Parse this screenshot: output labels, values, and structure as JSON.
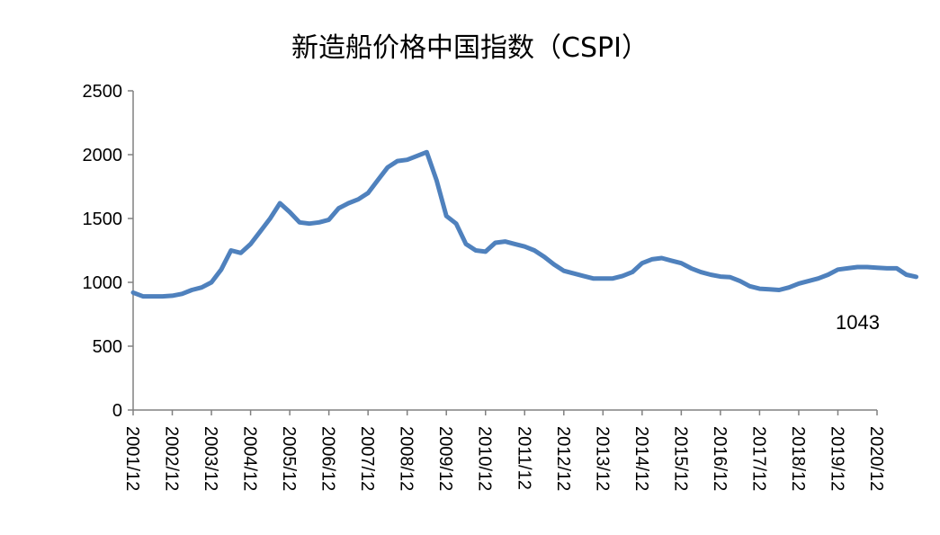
{
  "chart_data": {
    "type": "line",
    "title": "新造船价格中国指数（CSPI）",
    "xlabel": "",
    "ylabel": "",
    "ylim": [
      0,
      2500
    ],
    "yticks": [
      0,
      500,
      1000,
      1500,
      2000,
      2500
    ],
    "grid": false,
    "legend": "none",
    "x_tick_labels": [
      "2001/12",
      "2002/12",
      "2003/12",
      "2004/12",
      "2005/12",
      "2006/12",
      "2007/12",
      "2008/12",
      "2009/12",
      "2010/12",
      "2011/12",
      "2012/12",
      "2013/12",
      "2014/12",
      "2015/12",
      "2016/12",
      "2017/12",
      "2018/12",
      "2019/12",
      "2020/12"
    ],
    "annotation": "1043",
    "line_color": "#4f81bd",
    "series": [
      {
        "x": [
          2001.92,
          2002.17,
          2002.42,
          2002.67,
          2002.92,
          2003.17,
          2003.42,
          2003.67,
          2003.92,
          2004.17,
          2004.42,
          2004.67,
          2004.92,
          2005.17,
          2005.42,
          2005.67,
          2005.92,
          2006.17,
          2006.42,
          2006.67,
          2006.92,
          2007.17,
          2007.42,
          2007.67,
          2007.92,
          2008.17,
          2008.42,
          2008.67,
          2008.92,
          2009.17,
          2009.42,
          2009.67,
          2009.92,
          2010.17,
          2010.42,
          2010.67,
          2010.92,
          2011.17,
          2011.42,
          2011.67,
          2011.92,
          2012.17,
          2012.42,
          2012.67,
          2012.92,
          2013.17,
          2013.42,
          2013.67,
          2013.92,
          2014.17,
          2014.42,
          2014.67,
          2014.92,
          2015.17,
          2015.42,
          2015.67,
          2015.92,
          2016.17,
          2016.42,
          2016.67,
          2016.92,
          2017.17,
          2017.42,
          2017.67,
          2017.92,
          2018.17,
          2018.42,
          2018.67,
          2018.92,
          2019.17,
          2019.42,
          2019.67,
          2019.92,
          2020.17,
          2020.42,
          2020.67,
          2020.92,
          2021.17,
          2021.42,
          2021.67,
          2021.92
        ],
        "values": [
          920,
          890,
          890,
          890,
          895,
          910,
          940,
          960,
          1000,
          1100,
          1250,
          1230,
          1300,
          1400,
          1500,
          1620,
          1550,
          1470,
          1460,
          1470,
          1490,
          1580,
          1620,
          1650,
          1700,
          1800,
          1900,
          1950,
          1960,
          1990,
          2020,
          1800,
          1520,
          1460,
          1300,
          1250,
          1240,
          1310,
          1320,
          1300,
          1280,
          1250,
          1200,
          1140,
          1090,
          1070,
          1050,
          1030,
          1030,
          1030,
          1050,
          1080,
          1150,
          1180,
          1190,
          1170,
          1150,
          1110,
          1080,
          1060,
          1045,
          1040,
          1010,
          970,
          950,
          945,
          940,
          960,
          990,
          1010,
          1030,
          1060,
          1100,
          1110,
          1120,
          1120,
          1115,
          1110,
          1110,
          1060,
          1043
        ]
      }
    ]
  }
}
